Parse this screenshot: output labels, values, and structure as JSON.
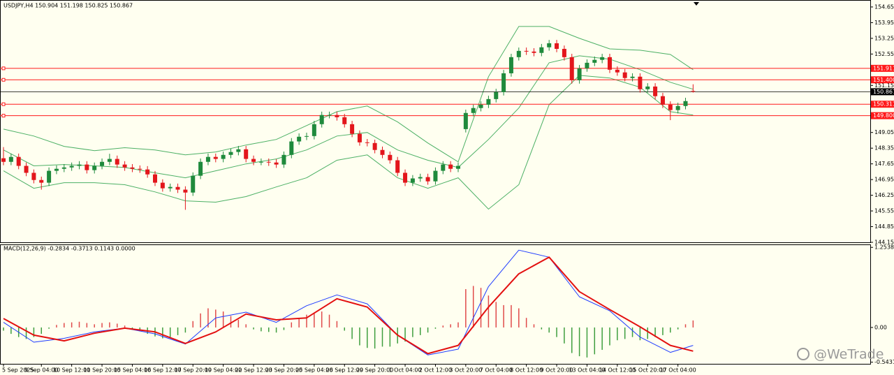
{
  "chart_data": {
    "type": "candlestick",
    "header": "USDJPY,H4  150.904 151.198 150.825 150.867",
    "categories": [
      "5 Sep 2025",
      null,
      null,
      null,
      null,
      "9 Sep 04:00",
      null,
      null,
      null,
      "10 Sep 12:00",
      null,
      null,
      null,
      "11 Sep 20:00",
      null,
      null,
      null,
      "15 Sep 04:00",
      null,
      null,
      null,
      "16 Sep 12:00",
      null,
      null,
      null,
      "17 Sep 20:00",
      null,
      null,
      null,
      "19 Sep 04:00",
      null,
      null,
      null,
      "22 Sep 12:00",
      null,
      null,
      null,
      "23 Sep 20:00",
      null,
      null,
      null,
      "25 Sep 04:00",
      null,
      null,
      null,
      "26 Sep 12:00",
      null,
      null,
      null,
      "29 Sep 20:00",
      null,
      null,
      null,
      "1 Oct 04:00",
      null,
      null,
      null,
      "2 Oct 12:00",
      null,
      null,
      null,
      "3 Oct 20:00",
      null,
      null,
      null,
      "7 Oct 04:00",
      null,
      null,
      null,
      "8 Oct 12:00",
      null,
      null,
      null,
      "9 Oct 20:00",
      null,
      null,
      null,
      "13 Oct 04:00",
      null,
      null,
      null,
      "14 Oct 12:00",
      null,
      null,
      null,
      "15 Oct 20:00",
      null,
      null,
      null,
      "17 Oct 04:00",
      null,
      null
    ],
    "open": [
      147.9,
      147.74,
      147.96,
      147.56,
      147.25,
      146.93,
      146.81,
      147.34,
      147.43,
      147.49,
      147.56,
      147.62,
      147.37,
      147.56,
      147.74,
      147.87,
      147.62,
      147.49,
      147.43,
      147.4,
      147.18,
      146.81,
      146.56,
      146.62,
      146.5,
      146.37,
      147.12,
      147.74,
      147.96,
      147.87,
      148.05,
      148.18,
      148.3,
      147.87,
      147.74,
      147.74,
      147.71,
      147.62,
      148.05,
      148.65,
      148.86,
      148.89,
      149.42,
      149.83,
      149.83,
      149.73,
      149.42,
      148.99,
      148.61,
      148.58,
      148.27,
      148.05,
      147.81,
      147.25,
      146.81,
      147.0,
      147.06,
      146.87,
      147.34,
      147.62,
      147.43,
      149.2,
      149.92,
      150.14,
      150.29,
      150.54,
      150.85,
      151.69,
      152.41,
      152.69,
      152.66,
      152.6,
      152.85,
      153.03,
      152.78,
      152.41,
      151.38,
      151.91,
      152.16,
      152.29,
      152.41,
      151.85,
      151.73,
      151.48,
      151.54,
      150.98,
      151.1,
      150.67,
      150.29,
      150.05,
      150.23,
      150.9
    ],
    "high": [
      148.4,
      148.11,
      148.11,
      147.71,
      147.4,
      147.08,
      147.49,
      147.58,
      147.64,
      147.71,
      147.77,
      147.77,
      147.71,
      147.89,
      148.1,
      148.02,
      147.77,
      147.64,
      147.58,
      147.55,
      147.33,
      146.96,
      146.77,
      146.77,
      146.65,
      147.27,
      147.89,
      148.11,
      148.11,
      148.2,
      148.33,
      148.45,
      148.45,
      148.02,
      147.89,
      147.89,
      147.86,
      148.2,
      148.8,
      149.01,
      149.04,
      149.57,
      149.98,
      149.98,
      149.98,
      149.88,
      149.57,
      149.14,
      148.76,
      148.73,
      148.42,
      148.2,
      147.96,
      147.4,
      147.15,
      147.21,
      147.21,
      147.49,
      147.77,
      147.77,
      147.71,
      150.07,
      150.29,
      150.44,
      150.69,
      151.0,
      151.84,
      152.56,
      152.84,
      152.84,
      152.81,
      153.0,
      153.18,
      153.18,
      152.93,
      152.56,
      152.06,
      152.31,
      152.44,
      152.56,
      152.56,
      152.0,
      151.88,
      151.69,
      151.69,
      151.25,
      151.25,
      150.82,
      150.44,
      150.38,
      150.6,
      151.2
    ],
    "low": [
      147.59,
      147.59,
      147.41,
      147.1,
      146.78,
      146.5,
      146.66,
      147.19,
      147.28,
      147.34,
      147.41,
      147.22,
      147.22,
      147.41,
      147.59,
      147.47,
      147.34,
      147.28,
      147.25,
      147.03,
      146.66,
      146.41,
      146.41,
      146.35,
      145.6,
      146.22,
      146.97,
      147.59,
      147.72,
      147.72,
      147.9,
      148.03,
      147.72,
      147.59,
      147.59,
      147.56,
      147.47,
      147.47,
      147.9,
      148.5,
      148.71,
      148.74,
      149.27,
      149.68,
      149.58,
      149.27,
      148.84,
      148.46,
      148.43,
      148.12,
      147.9,
      147.66,
      147.1,
      146.66,
      146.66,
      146.85,
      146.72,
      146.72,
      147.19,
      147.28,
      147.28,
      149.05,
      149.77,
      149.99,
      150.14,
      150.39,
      150.7,
      151.54,
      152.26,
      152.51,
      152.45,
      152.45,
      152.7,
      152.63,
      152.26,
      151.23,
      151.23,
      151.76,
      152.01,
      152.14,
      151.7,
      151.58,
      151.33,
      151.33,
      150.83,
      150.83,
      150.52,
      150.14,
      149.6,
      149.9,
      150.08,
      150.83
    ],
    "close": [
      147.74,
      147.96,
      147.56,
      147.25,
      146.93,
      146.81,
      147.34,
      147.43,
      147.49,
      147.56,
      147.62,
      147.37,
      147.56,
      147.74,
      147.87,
      147.62,
      147.49,
      147.43,
      147.4,
      147.18,
      146.81,
      146.56,
      146.62,
      146.5,
      146.37,
      147.12,
      147.74,
      147.96,
      147.87,
      148.05,
      148.18,
      148.3,
      147.87,
      147.74,
      147.74,
      147.71,
      147.62,
      148.05,
      148.65,
      148.86,
      148.89,
      149.42,
      149.83,
      149.83,
      149.73,
      149.42,
      148.99,
      148.61,
      148.58,
      148.27,
      148.05,
      147.81,
      147.25,
      146.81,
      147.0,
      147.06,
      146.87,
      147.34,
      147.62,
      147.43,
      147.56,
      149.92,
      150.14,
      150.29,
      150.54,
      150.85,
      151.69,
      152.41,
      152.69,
      152.66,
      152.6,
      152.85,
      153.03,
      152.78,
      152.41,
      151.38,
      151.91,
      152.16,
      152.29,
      152.41,
      151.85,
      151.73,
      151.48,
      151.54,
      150.98,
      151.1,
      150.67,
      150.29,
      150.05,
      150.23,
      150.45,
      150.87
    ],
    "up_color": "#1f8a3c",
    "down_color": "#e3161c",
    "ylim": [
      144.15,
      154.96
    ],
    "yticks": [
      {
        "value": 154.65,
        "label": "154.650"
      },
      {
        "value": 153.95,
        "label": "153.950"
      },
      {
        "value": 153.25,
        "label": "153.250"
      },
      {
        "value": 152.55,
        "label": "152.550"
      },
      {
        "value": 151.15,
        "label": "151.150"
      },
      {
        "value": 149.05,
        "label": "149.050"
      },
      {
        "value": 148.35,
        "label": "148.350"
      },
      {
        "value": 147.65,
        "label": "147.650"
      },
      {
        "value": 146.95,
        "label": "146.950"
      },
      {
        "value": 146.25,
        "label": "146.250"
      },
      {
        "value": 145.55,
        "label": "145.550"
      },
      {
        "value": 144.85,
        "label": "144.850"
      },
      {
        "value": 144.15,
        "label": "144.150"
      }
    ],
    "bollinger": {
      "x": [
        0,
        4,
        8,
        12,
        16,
        20,
        24,
        28,
        32,
        36,
        40,
        44,
        48,
        52,
        56,
        60,
        64,
        68,
        72,
        76,
        80,
        84,
        88,
        91
      ],
      "upper": [
        149.2,
        148.89,
        148.43,
        148.24,
        148.37,
        148.27,
        148.05,
        148.18,
        148.49,
        148.74,
        149.36,
        149.98,
        150.23,
        149.52,
        148.58,
        147.74,
        151.54,
        153.78,
        153.78,
        153.25,
        152.78,
        152.72,
        152.53,
        151.85
      ],
      "middle": [
        148.27,
        147.56,
        147.62,
        147.56,
        147.49,
        147.25,
        147.03,
        147.34,
        147.65,
        147.87,
        148.27,
        148.89,
        149.05,
        148.27,
        147.81,
        147.49,
        148.74,
        150.14,
        152.16,
        152.47,
        152.32,
        151.85,
        151.29,
        150.98
      ],
      "lower": [
        147.34,
        146.56,
        146.81,
        146.81,
        146.72,
        146.4,
        146.0,
        145.94,
        146.19,
        146.62,
        147.03,
        147.81,
        148.05,
        147.03,
        146.56,
        147.03,
        145.63,
        146.72,
        150.29,
        151.6,
        151.48,
        151.07,
        149.98,
        149.83
      ],
      "color": "#4cb065"
    },
    "levels": [
      151.911,
      {
        "value": 151.4,
        "label": "151.400"
      },
      150.311,
      {
        "value": 149.8,
        "label": "149.800"
      }
    ],
    "level_color": "#ff1a1a",
    "current_price": 150.867,
    "macd": {
      "header": "MACD(12,26,9) -0.2834 -0.3713 0.1143 0.0000",
      "main": [
        0.08,
        -0.23,
        -0.17,
        -0.07,
        -0.01,
        -0.1,
        -0.26,
        0.15,
        0.24,
        0.08,
        0.34,
        0.51,
        0.37,
        -0.12,
        -0.43,
        -0.34,
        0.64,
        1.21,
        1.1,
        0.48,
        0.26,
        -0.15,
        -0.39,
        -0.28
      ],
      "signal": [
        0.14,
        -0.12,
        -0.21,
        -0.09,
        -0.01,
        -0.07,
        -0.25,
        -0.07,
        0.21,
        0.12,
        0.15,
        0.45,
        0.32,
        -0.12,
        -0.41,
        -0.28,
        0.32,
        0.84,
        1.1,
        0.56,
        0.28,
        0.01,
        -0.28,
        -0.37
      ],
      "histogram": [
        -0.05,
        -0.1,
        -0.15,
        -0.18,
        -0.15,
        -0.1,
        -0.02,
        0.04,
        0.07,
        0.08,
        0.09,
        0.07,
        0.05,
        0.07,
        0.08,
        0.06,
        0.03,
        -0.02,
        -0.06,
        -0.1,
        -0.14,
        -0.17,
        -0.15,
        -0.12,
        -0.08,
        0.1,
        0.22,
        0.3,
        0.28,
        0.25,
        0.18,
        0.12,
        0.05,
        -0.03,
        -0.06,
        -0.07,
        -0.08,
        -0.04,
        0.08,
        0.15,
        0.2,
        0.23,
        0.25,
        0.2,
        0.1,
        -0.05,
        -0.18,
        -0.28,
        -0.32,
        -0.33,
        -0.3,
        -0.3,
        -0.25,
        -0.22,
        -0.15,
        -0.12,
        -0.08,
        -0.02,
        0.03,
        0.05,
        0.08,
        0.6,
        0.65,
        0.62,
        0.5,
        0.4,
        0.35,
        0.35,
        0.3,
        0.15,
        0.05,
        -0.03,
        -0.08,
        -0.15,
        -0.25,
        -0.4,
        -0.45,
        -0.47,
        -0.42,
        -0.35,
        -0.28,
        -0.2,
        -0.18,
        -0.15,
        -0.2,
        -0.18,
        -0.15,
        -0.12,
        -0.08,
        -0.03,
        0.05,
        0.11
      ],
      "main_color": "#1f3cff",
      "signal_color": "#e31010",
      "hist_up_color": "#e04a4a",
      "hist_down_color": "#3e9e3e",
      "ylim": [
        -0.58,
        1.3
      ],
      "yticks": [
        1.2538,
        {
          "value": 0,
          "label": "0.00"
        },
        -0.5431
      ]
    },
    "watermark": "@WeTrade"
  }
}
